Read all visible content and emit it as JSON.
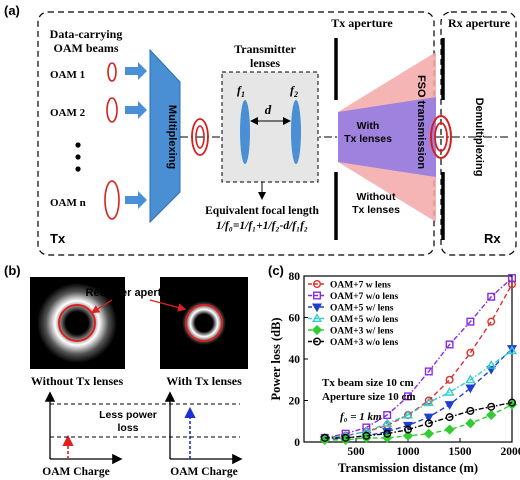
{
  "panel_a": {
    "label": "(a)",
    "beams_title_1": "Data-carrying",
    "beams_title_2": "OAM beams",
    "oam_labels": [
      "OAM 1",
      "OAM 2",
      "OAM n"
    ],
    "multiplexing": "Multiplexing",
    "transmitter_lenses_1": "Transmitter",
    "transmitter_lenses_2": "lenses",
    "f1": "f",
    "f1_sub": "1",
    "f2": "f",
    "f2_sub": "2",
    "d": "d",
    "tx_aperture": "Tx aperture",
    "rx_aperture": "Rx aperture",
    "fso": "FSO transmission",
    "demultiplexing": "Demultiplexing",
    "with_lenses_1": "With",
    "with_lenses_2": "Tx lenses",
    "without_lenses_1": "Without",
    "without_lenses_2": "Tx lenses",
    "equiv_1": "Equivalent focal length",
    "equiv_2": "1/f₀=1/f₁+1/f₂-d/f₁f₂",
    "tx": "Tx",
    "rx": "Rx"
  },
  "panel_b": {
    "label": "(b)",
    "receiver_aperture": "Receiver aperture",
    "without": "Without Tx lenses",
    "with": "With Tx lenses",
    "less_power_1": "Less power",
    "less_power_2": "loss",
    "xaxis_left": "OAM Charge",
    "xaxis_right": "OAM Charge"
  },
  "panel_c": {
    "label": "(c)",
    "annotation_1": "Tx beam size 10 cm",
    "annotation_2": "Aperture size 10 cm",
    "annotation_3": "f₀ = 1 km"
  },
  "chart_data": {
    "type": "line",
    "title": "",
    "xlabel": "Transmission distance (m)",
    "ylabel": "Power loss (dB)",
    "xlim": [
      0,
      2000
    ],
    "ylim": [
      0,
      80
    ],
    "xticks": [
      500,
      1000,
      1500,
      2000
    ],
    "yticks": [
      0,
      20,
      40,
      60,
      80
    ],
    "legend_position": "top-left",
    "x": [
      200,
      400,
      600,
      800,
      1000,
      1200,
      1400,
      1600,
      1800,
      2000
    ],
    "series": [
      {
        "name": "OAM+7 w lens",
        "color": "#e03030",
        "marker": "circle",
        "values": [
          2,
          3,
          5,
          8,
          13,
          20,
          30,
          43,
          58,
          76
        ]
      },
      {
        "name": "OAM+7 w/o lens",
        "color": "#8a2be2",
        "marker": "square",
        "values": [
          2,
          4,
          7,
          13,
          22,
          34,
          47,
          58,
          70,
          79
        ]
      },
      {
        "name": "OAM+5 w/ lens",
        "color": "#1f3fd0",
        "marker": "triangle-down",
        "values": [
          1,
          2,
          3,
          5,
          8,
          12,
          18,
          26,
          35,
          45
        ]
      },
      {
        "name": "OAM+5 w/o lens",
        "color": "#33cccc",
        "marker": "triangle-up",
        "values": [
          2,
          3,
          5,
          9,
          13,
          19,
          24,
          30,
          37,
          44
        ]
      },
      {
        "name": "OAM+3 w/ lens",
        "color": "#33cc33",
        "marker": "diamond",
        "values": [
          1,
          1,
          2,
          2,
          3,
          4,
          6,
          9,
          13,
          18
        ]
      },
      {
        "name": "OAM+3 w/o lens",
        "color": "#000000",
        "marker": "circle",
        "values": [
          2,
          2,
          3,
          4,
          6,
          9,
          12,
          15,
          17,
          19
        ]
      }
    ]
  }
}
